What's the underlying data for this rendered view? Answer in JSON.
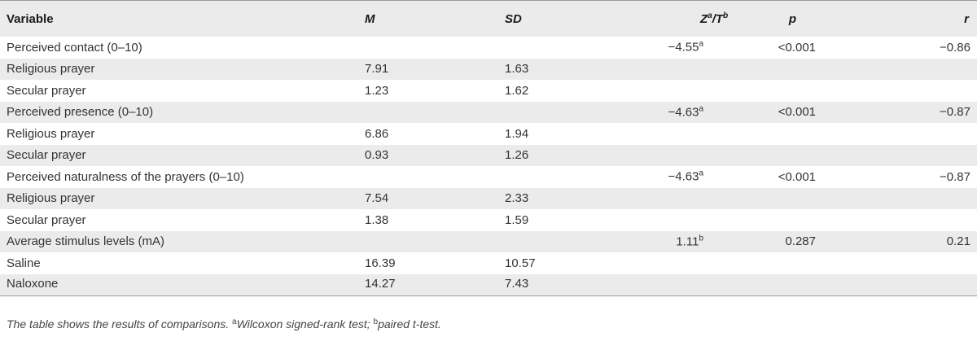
{
  "table": {
    "headers": {
      "variable": "Variable",
      "m": "M",
      "sd": "SD",
      "z_main": "Z",
      "z_sup": "a",
      "slash": "/",
      "t_main": "T",
      "t_sup": "b",
      "p": "p",
      "r": "r"
    },
    "rows": [
      {
        "variable": "Perceived contact (0–10)",
        "m": "",
        "sd": "",
        "zt": "−4.55",
        "zt_sup": "a",
        "p": "<0.001",
        "r": "−0.86"
      },
      {
        "variable": "Religious prayer",
        "m": "7.91",
        "sd": "1.63",
        "zt": "",
        "zt_sup": "",
        "p": "",
        "r": ""
      },
      {
        "variable": "Secular prayer",
        "m": "1.23",
        "sd": "1.62",
        "zt": "",
        "zt_sup": "",
        "p": "",
        "r": ""
      },
      {
        "variable": "Perceived presence (0–10)",
        "m": "",
        "sd": "",
        "zt": "−4.63",
        "zt_sup": "a",
        "p": "<0.001",
        "r": "−0.87"
      },
      {
        "variable": "Religious prayer",
        "m": "6.86",
        "sd": "1.94",
        "zt": "",
        "zt_sup": "",
        "p": "",
        "r": ""
      },
      {
        "variable": "Secular prayer",
        "m": "0.93",
        "sd": "1.26",
        "zt": "",
        "zt_sup": "",
        "p": "",
        "r": ""
      },
      {
        "variable": "Perceived naturalness of the prayers (0–10)",
        "m": "",
        "sd": "",
        "zt": "−4.63",
        "zt_sup": "a",
        "p": "<0.001",
        "r": "−0.87"
      },
      {
        "variable": "Religious prayer",
        "m": "7.54",
        "sd": "2.33",
        "zt": "",
        "zt_sup": "",
        "p": "",
        "r": ""
      },
      {
        "variable": "Secular prayer",
        "m": "1.38",
        "sd": "1.59",
        "zt": "",
        "zt_sup": "",
        "p": "",
        "r": ""
      },
      {
        "variable": "Average stimulus levels (mA)",
        "m": "",
        "sd": "",
        "zt": "1.11",
        "zt_sup": "b",
        "p": "0.287",
        "r": "0.21"
      },
      {
        "variable": "Saline",
        "m": "16.39",
        "sd": "10.57",
        "zt": "",
        "zt_sup": "",
        "p": "",
        "r": ""
      },
      {
        "variable": "Naloxone",
        "m": "14.27",
        "sd": "7.43",
        "zt": "",
        "zt_sup": "",
        "p": "",
        "r": ""
      }
    ]
  },
  "footnote": {
    "lead": "The table shows the results of comparisons. ",
    "sup_a": "a",
    "text_a": "Wilcoxon signed-rank test; ",
    "sup_b": "b",
    "text_b": "paired t-test."
  }
}
